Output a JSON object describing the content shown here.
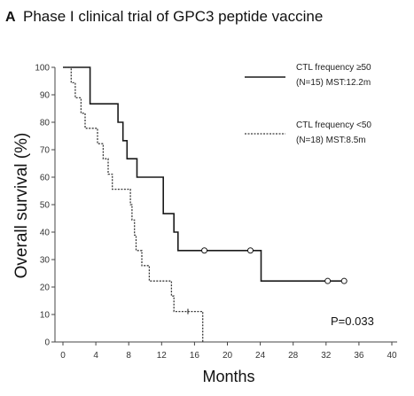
{
  "chart_data": {
    "type": "line",
    "panel_letter": "A",
    "title": "Phase I clinical trial of GPC3 peptide vaccine",
    "xlabel": "Months",
    "ylabel": "Overall survival (%)",
    "xlim": [
      0,
      40
    ],
    "ylim": [
      0,
      100
    ],
    "x_ticks": [
      "0",
      "4",
      "8",
      "12",
      "16",
      "20",
      "24",
      "28",
      "32",
      "36",
      "40"
    ],
    "y_ticks": [
      "0",
      "10",
      "20",
      "30",
      "40",
      "50",
      "60",
      "70",
      "80",
      "90",
      "100"
    ],
    "grid": false,
    "legend_position": "top-right",
    "annotation": "P=0.033",
    "series": [
      {
        "name_line1": "CTL frequency ≥50",
        "name_line2": "(N=15)  MST:12.2m",
        "style": "solid",
        "color": "#1a1a1a",
        "steps": [
          [
            0,
            100
          ],
          [
            3.3,
            100
          ],
          [
            3.3,
            86.7
          ],
          [
            6.7,
            86.7
          ],
          [
            6.7,
            80
          ],
          [
            7.3,
            80
          ],
          [
            7.3,
            73.3
          ],
          [
            7.8,
            73.3
          ],
          [
            7.8,
            66.7
          ],
          [
            9,
            66.7
          ],
          [
            9,
            60
          ],
          [
            12.2,
            60
          ],
          [
            12.2,
            46.7
          ],
          [
            13.5,
            46.7
          ],
          [
            13.5,
            40
          ],
          [
            14,
            40
          ],
          [
            14,
            33.3
          ],
          [
            24.1,
            33.3
          ],
          [
            24.1,
            22.2
          ],
          [
            34.2,
            22.2
          ]
        ],
        "censored": [
          [
            17.2,
            33.3
          ],
          [
            22.8,
            33.3
          ],
          [
            32.2,
            22.2
          ],
          [
            34.2,
            22.2
          ]
        ]
      },
      {
        "name_line1": "CTL frequency <50",
        "name_line2": "(N=18)  MST:8.5m",
        "style": "dotted",
        "color": "#3a3a3a",
        "steps": [
          [
            0,
            100
          ],
          [
            1,
            100
          ],
          [
            1,
            94.4
          ],
          [
            1.5,
            94.4
          ],
          [
            1.5,
            88.9
          ],
          [
            2.2,
            88.9
          ],
          [
            2.2,
            83.3
          ],
          [
            2.7,
            83.3
          ],
          [
            2.7,
            77.8
          ],
          [
            4.2,
            77.8
          ],
          [
            4.2,
            72.2
          ],
          [
            4.9,
            72.2
          ],
          [
            4.9,
            66.7
          ],
          [
            5.5,
            66.7
          ],
          [
            5.5,
            61.1
          ],
          [
            6,
            61.1
          ],
          [
            6,
            55.6
          ],
          [
            8.2,
            55.6
          ],
          [
            8.2,
            50
          ],
          [
            8.4,
            50
          ],
          [
            8.4,
            44.4
          ],
          [
            8.7,
            44.4
          ],
          [
            8.7,
            38.9
          ],
          [
            8.9,
            38.9
          ],
          [
            8.9,
            33.3
          ],
          [
            9.6,
            33.3
          ],
          [
            9.6,
            27.8
          ],
          [
            10.5,
            27.8
          ],
          [
            10.5,
            22.2
          ],
          [
            13.2,
            22.2
          ],
          [
            13.2,
            16.7
          ],
          [
            13.5,
            16.7
          ],
          [
            13.5,
            11.1
          ],
          [
            17,
            11.1
          ],
          [
            17,
            0
          ]
        ],
        "censored": [
          [
            15.2,
            11.1
          ]
        ]
      }
    ]
  }
}
